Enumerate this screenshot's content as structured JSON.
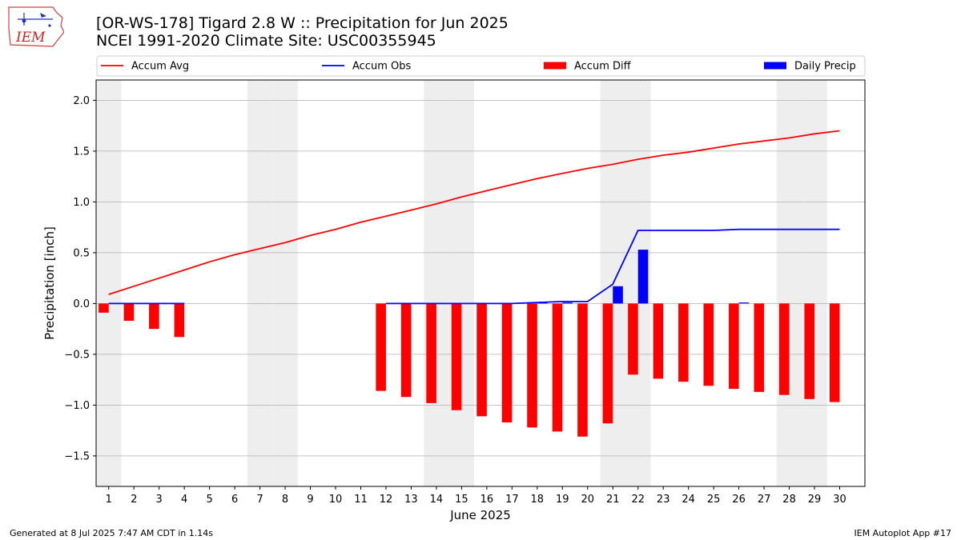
{
  "header": {
    "title_line1": "[OR-WS-178] Tigard 2.8 W :: Precipitation for Jun 2025",
    "title_line2": "NCEI 1991-2020 Climate Site: USC00355945"
  },
  "logo": {
    "text": "IEM"
  },
  "footer": {
    "left": "Generated at 8 Jul 2025 7:47 AM CDT in 1.14s",
    "right": "IEM Autoplot App #17"
  },
  "colors": {
    "avg": "#ff0000",
    "obs": "#0000ff",
    "diff": "#ff0000",
    "daily": "#0000ff",
    "weekend": "#eeeeee",
    "grid": "#b0b0b0"
  },
  "chart_data": {
    "type": "bar",
    "xlabel": "June 2025",
    "ylabel": "Precipitation [inch]",
    "xlim": [
      0.5,
      31.0
    ],
    "ylim": [
      -1.8,
      2.2
    ],
    "yticks": [
      -1.5,
      -1.0,
      -0.5,
      0.0,
      0.5,
      1.0,
      1.5,
      2.0
    ],
    "ytick_labels": [
      "−1.5",
      "−1.0",
      "−0.5",
      "0.0",
      "0.5",
      "1.0",
      "1.5",
      "2.0"
    ],
    "x": [
      1,
      2,
      3,
      4,
      5,
      6,
      7,
      8,
      9,
      10,
      11,
      12,
      13,
      14,
      15,
      16,
      17,
      18,
      19,
      20,
      21,
      22,
      23,
      24,
      25,
      26,
      27,
      28,
      29,
      30
    ],
    "grid": true,
    "legend_position": "top",
    "weekend_days": [
      1,
      7,
      8,
      14,
      15,
      21,
      22,
      28,
      29
    ],
    "series": [
      {
        "name": "Accum Avg",
        "kind": "line",
        "x": [
          1,
          2,
          3,
          4,
          5,
          6,
          7,
          8,
          9,
          10,
          11,
          12,
          13,
          14,
          15,
          16,
          17,
          18,
          19,
          20,
          21,
          22,
          23,
          24,
          25,
          26,
          27,
          28,
          29,
          30
        ],
        "values": [
          0.09,
          0.17,
          0.25,
          0.33,
          0.41,
          0.48,
          0.54,
          0.6,
          0.67,
          0.73,
          0.8,
          0.86,
          0.92,
          0.98,
          1.05,
          1.11,
          1.17,
          1.23,
          1.28,
          1.33,
          1.37,
          1.42,
          1.46,
          1.49,
          1.53,
          1.57,
          1.6,
          1.63,
          1.67,
          1.7
        ]
      },
      {
        "name": "Accum Obs",
        "kind": "line",
        "x": [
          1,
          2,
          3,
          4
        ],
        "values": [
          0.0,
          0.0,
          0.0,
          0.0
        ]
      },
      {
        "name": "Accum Obs (cont.)",
        "kind": "line",
        "x": [
          12,
          13,
          14,
          15,
          16,
          17,
          18,
          19,
          20,
          21,
          22,
          23,
          24,
          25,
          26,
          27,
          28,
          29,
          30
        ],
        "values": [
          0.0,
          0.0,
          0.0,
          0.0,
          0.0,
          0.0,
          0.01,
          0.02,
          0.02,
          0.19,
          0.72,
          0.72,
          0.72,
          0.72,
          0.73,
          0.73,
          0.73,
          0.73,
          0.73
        ]
      },
      {
        "name": "Accum Diff",
        "kind": "bar",
        "x": [
          1,
          2,
          3,
          4,
          12,
          13,
          14,
          15,
          16,
          17,
          18,
          19,
          20,
          21,
          22,
          23,
          24,
          25,
          26,
          27,
          28,
          29,
          30
        ],
        "values": [
          -0.09,
          -0.17,
          -0.25,
          -0.33,
          -0.86,
          -0.92,
          -0.98,
          -1.05,
          -1.11,
          -1.17,
          -1.22,
          -1.26,
          -1.31,
          -1.18,
          -0.7,
          -0.74,
          -0.77,
          -0.81,
          -0.84,
          -0.87,
          -0.9,
          -0.94,
          -0.97
        ]
      },
      {
        "name": "Daily Precip",
        "kind": "bar",
        "x": [
          18,
          19,
          21,
          22,
          26
        ],
        "values": [
          0.01,
          0.01,
          0.17,
          0.53,
          0.01
        ]
      }
    ]
  }
}
